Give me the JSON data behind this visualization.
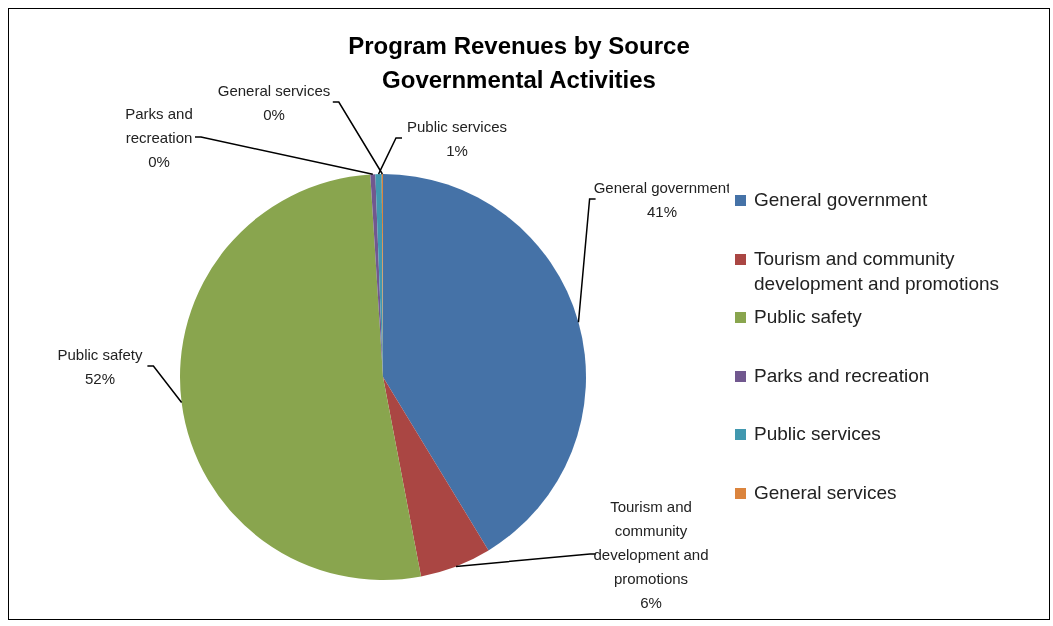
{
  "chart_data": {
    "type": "pie",
    "title": "Program Revenues by Source",
    "subtitle": "Governmental Activities",
    "categories": [
      "General government",
      "Tourism and community development and promotions",
      "Public safety",
      "Parks and recreation",
      "Public services",
      "General services"
    ],
    "values": [
      41.3,
      5.7,
      52.0,
      0.4,
      0.5,
      0.1
    ],
    "value_labels": [
      "41%",
      "6%",
      "52%",
      "0%",
      "1%",
      "0%"
    ],
    "colors": [
      "#4572a7",
      "#aa4643",
      "#89a54e",
      "#71588f",
      "#4198af",
      "#db843d"
    ],
    "legend": "right"
  }
}
